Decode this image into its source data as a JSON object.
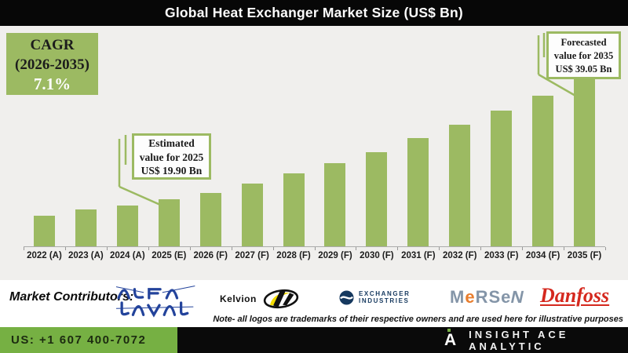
{
  "title": "Global Heat Exchanger Market Size (US$ Bn)",
  "cagr": {
    "line1": "CAGR",
    "line2": "(2026-2035)",
    "line3": "7.1%"
  },
  "chart_data": {
    "type": "bar",
    "title": "Global Heat Exchanger Market Size (US$ Bn)",
    "categories": [
      "2022 (A)",
      "2023 (A)",
      "2024 (A)",
      "2025 (E)",
      "2026 (F)",
      "2027 (F)",
      "2028 (F)",
      "2029 (F)",
      "2030 (F)",
      "2031 (F)",
      "2032 (F)",
      "2033 (F)",
      "2034 (F)",
      "2035 (F)"
    ],
    "values": [
      17.3,
      18.3,
      19.0,
      19.9,
      21.0,
      22.4,
      24.0,
      25.6,
      27.4,
      29.6,
      31.7,
      34.0,
      36.3,
      39.05
    ],
    "values_source": "Only 2025 (19.90) and 2035 (39.05) are labeled; remaining values estimated from bar heights consistent with the stated 7.1% CAGR (2026-2035)",
    "xlabel": "",
    "ylabel": "US$ Bn",
    "ylim": [
      12.5,
      40
    ],
    "grid": false,
    "legend": false,
    "cagr_label": "CAGR (2026-2035) 7.1%",
    "annotations": [
      {
        "name": "estimated-2025",
        "lines": [
          "Estimated",
          "value for 2025",
          "US$ 19.90 Bn"
        ],
        "target_category": "2025 (E)",
        "value": 19.9
      },
      {
        "name": "forecasted-2035",
        "lines": [
          "Forecasted",
          "value for 2035",
          "US$ 39.05 Bn"
        ],
        "target_category": "2035 (F)",
        "value": 39.05
      }
    ]
  },
  "contributors": {
    "label": "Market Contributors:",
    "note": "Note- all logos are trademarks of their respective owners and are used here for illustrative purposes",
    "logos": {
      "alfa_laval": {
        "name": "ALFA LAVAL"
      },
      "kelvion": {
        "text": "Kelvion"
      },
      "exchanger": {
        "line1": "EXCHANGER",
        "line2": "INDUSTRIES"
      },
      "mersen": {
        "letters": [
          "M",
          "e",
          "R",
          "S",
          "e",
          "N"
        ]
      },
      "danfoss": {
        "text": "Danfoss"
      }
    }
  },
  "footer": {
    "phone": "US: +1 607 400-7072",
    "brand": "INSIGHT ACE ANALYTIC",
    "brand_initial": "A"
  },
  "colors": {
    "bar_green": "#9cba62",
    "callout_border": "#9cba62",
    "footer_green": "#76b043",
    "title_bg": "#070707",
    "chart_bg": "#f0efed",
    "alfa_blue": "#23439b",
    "exchanger_navy": "#16395f",
    "mersen_slate": "#8495a8",
    "mersen_orange": "#e87d2d",
    "danfoss_red": "#d5281e",
    "kelvion_yellow": "#f3dc00"
  }
}
